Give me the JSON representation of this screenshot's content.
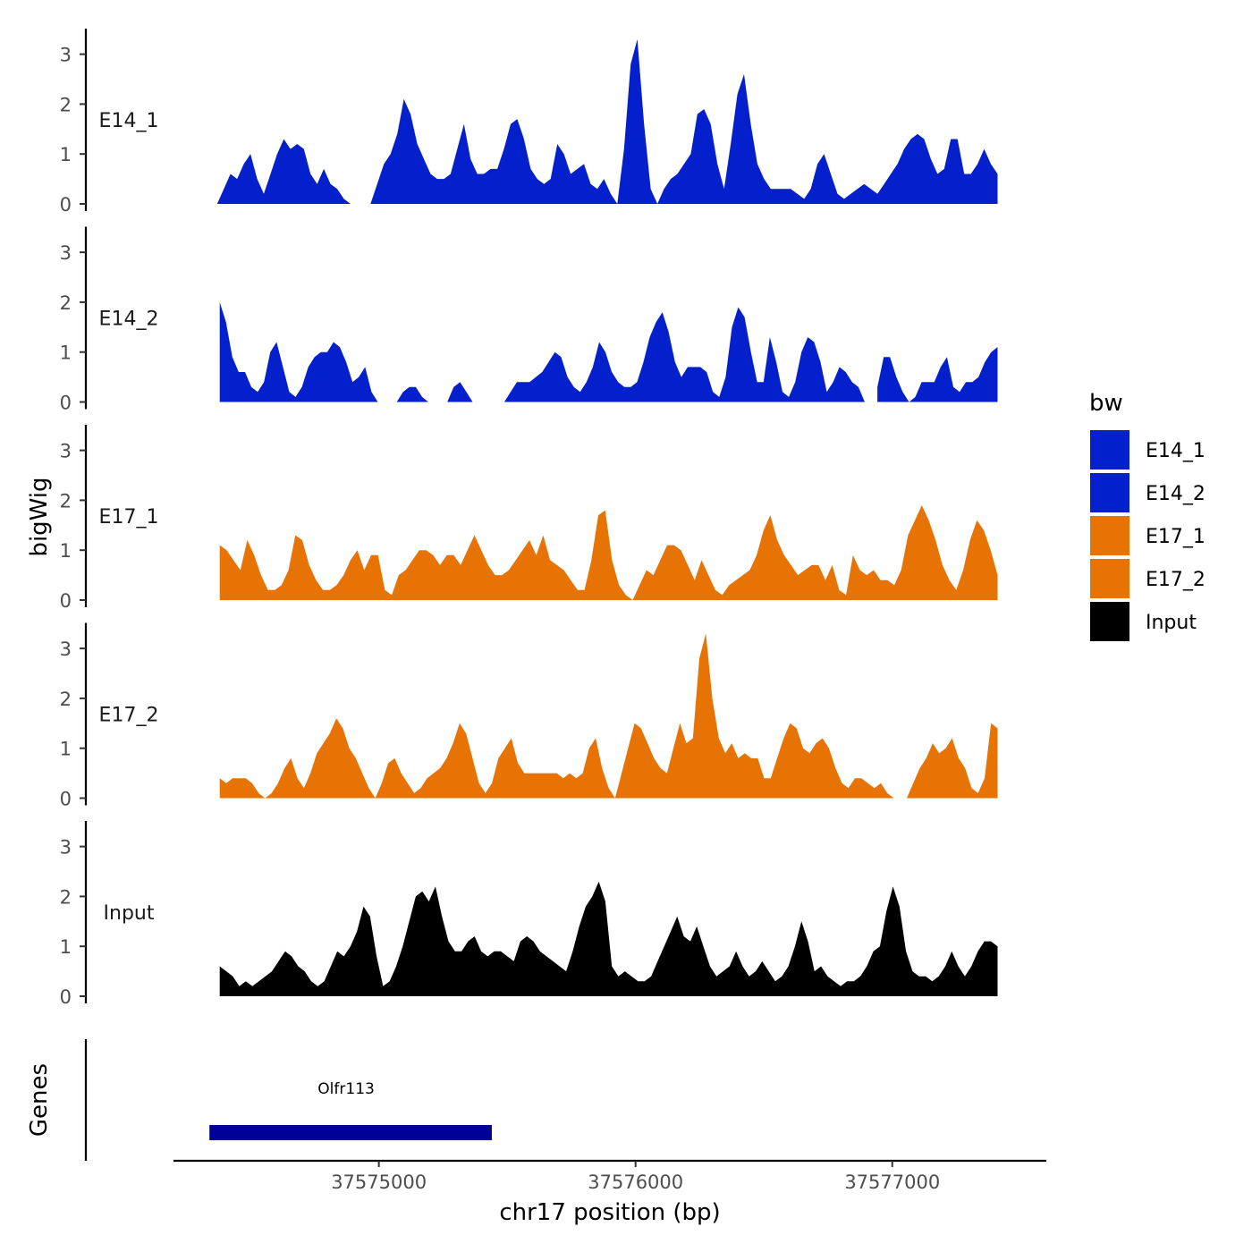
{
  "chart_data": {
    "type": "area",
    "title": "",
    "xlabel": "chr17 position (bp)",
    "ylabel": "bigWig",
    "genes_label": "Genes",
    "xlim": [
      37574200,
      37577600
    ],
    "ylim": [
      0,
      3.5
    ],
    "x_ticks": [
      37575000,
      37576000,
      37577000
    ],
    "x_tick_labels": [
      "37575000",
      "37576000",
      "37577000"
    ],
    "y_ticks": [
      0,
      1,
      2,
      3
    ],
    "y_tick_labels": [
      "0",
      "1",
      "2",
      "3"
    ],
    "legend": {
      "title": "bw",
      "position": "right",
      "entries": [
        {
          "label": "E14_1",
          "color": "#0320CC"
        },
        {
          "label": "E14_2",
          "color": "#0320CC"
        },
        {
          "label": "E17_1",
          "color": "#E87305"
        },
        {
          "label": "E17_2",
          "color": "#E87305"
        },
        {
          "label": "Input",
          "color": "#000000"
        }
      ]
    },
    "series": [
      {
        "name": "E14_1",
        "color": "#0320CC",
        "x_range": [
          37574370,
          37577410
        ],
        "values": [
          0,
          0.3,
          0.6,
          0.5,
          0.8,
          1.0,
          0.5,
          0.2,
          0.6,
          1.0,
          1.3,
          1.1,
          1.2,
          1.1,
          0.6,
          0.4,
          0.7,
          0.4,
          0.3,
          0.1,
          0,
          null,
          null,
          0,
          0.4,
          0.8,
          1.0,
          1.4,
          2.1,
          1.8,
          1.2,
          0.9,
          0.6,
          0.5,
          0.5,
          0.6,
          1.1,
          1.6,
          0.9,
          0.6,
          0.6,
          0.7,
          0.7,
          1.1,
          1.6,
          1.7,
          1.3,
          0.7,
          0.5,
          0.4,
          0.5,
          1.2,
          1.0,
          0.6,
          0.7,
          0.8,
          0.4,
          0.3,
          0.5,
          0.2,
          0,
          1.1,
          2.8,
          3.3,
          1.6,
          0.3,
          0,
          0.3,
          0.5,
          0.6,
          0.8,
          1.0,
          1.8,
          1.9,
          1.6,
          0.8,
          0.3,
          1.2,
          2.2,
          2.6,
          1.6,
          0.8,
          0.5,
          0.3,
          0.3,
          0.3,
          0.3,
          0.2,
          0.1,
          0.3,
          0.8,
          1.0,
          0.6,
          0.2,
          0.1,
          0.2,
          0.3,
          0.4,
          0.3,
          0.2,
          0.4,
          0.6,
          0.8,
          1.1,
          1.3,
          1.4,
          1.3,
          0.9,
          0.6,
          0.7,
          1.3,
          1.3,
          0.6,
          0.6,
          0.8,
          1.1,
          0.8,
          0.6
        ]
      },
      {
        "name": "E14_2",
        "color": "#0320CC",
        "x_range": [
          37574380,
          37577410
        ],
        "values": [
          2.0,
          1.6,
          0.9,
          0.6,
          0.6,
          0.3,
          0.2,
          0.4,
          1.0,
          1.2,
          0.7,
          0.2,
          0.1,
          0.3,
          0.7,
          0.9,
          1.0,
          1.0,
          1.2,
          1.1,
          0.8,
          0.4,
          0.5,
          0.7,
          0.2,
          0,
          null,
          null,
          0,
          0.2,
          0.3,
          0.3,
          0.1,
          0,
          null,
          null,
          0,
          0.3,
          0.4,
          0.2,
          0,
          null,
          null,
          null,
          null,
          0,
          0.2,
          0.4,
          0.4,
          0.4,
          0.5,
          0.6,
          0.8,
          1.0,
          0.9,
          0.5,
          0.3,
          0.2,
          0.4,
          0.7,
          1.2,
          1.0,
          0.6,
          0.4,
          0.3,
          0.3,
          0.4,
          0.8,
          1.3,
          1.6,
          1.8,
          1.4,
          0.8,
          0.5,
          0.7,
          0.7,
          0.7,
          0.6,
          0.2,
          0.1,
          0.5,
          1.5,
          1.9,
          1.7,
          1.0,
          0.4,
          0.4,
          1.3,
          0.8,
          0.2,
          0.1,
          0.4,
          1.0,
          1.3,
          1.2,
          0.8,
          0.2,
          0.4,
          0.7,
          0.6,
          0.4,
          0.3,
          0,
          null,
          0.3,
          0.9,
          0.9,
          0.5,
          0.2,
          0,
          0.1,
          0.4,
          0.4,
          0.4,
          0.7,
          0.9,
          0.3,
          0.2,
          0.4,
          0.4,
          0.5,
          0.8,
          1.0,
          1.1
        ]
      },
      {
        "name": "E17_1",
        "color": "#E87305",
        "x_range": [
          37574380,
          37577410
        ],
        "values": [
          1.1,
          1.0,
          0.8,
          0.6,
          1.2,
          0.9,
          0.5,
          0.2,
          0.2,
          0.3,
          0.6,
          1.3,
          1.2,
          0.7,
          0.4,
          0.2,
          0.2,
          0.3,
          0.5,
          0.8,
          1.0,
          0.6,
          0.9,
          0.9,
          0.2,
          0.1,
          0.5,
          0.6,
          0.8,
          1.0,
          1.0,
          0.9,
          0.7,
          0.9,
          0.9,
          0.7,
          1.0,
          1.3,
          1.0,
          0.7,
          0.5,
          0.5,
          0.6,
          0.8,
          1.0,
          1.2,
          0.9,
          1.3,
          0.8,
          0.7,
          0.6,
          0.4,
          0.2,
          0.2,
          0.8,
          1.7,
          1.8,
          0.8,
          0.3,
          0.1,
          0,
          0.3,
          0.6,
          0.5,
          0.8,
          1.1,
          1.1,
          1.0,
          0.7,
          0.4,
          0.8,
          0.5,
          0.2,
          0.1,
          0.3,
          0.4,
          0.5,
          0.6,
          0.9,
          1.4,
          1.7,
          1.2,
          0.9,
          0.7,
          0.5,
          0.6,
          0.7,
          0.7,
          0.4,
          0.7,
          0.2,
          0.1,
          0.9,
          0.6,
          0.5,
          0.6,
          0.4,
          0.4,
          0.3,
          0.6,
          1.3,
          1.6,
          1.9,
          1.6,
          1.2,
          0.7,
          0.4,
          0.2,
          0.6,
          1.2,
          1.6,
          1.4,
          1.0,
          0.5
        ]
      },
      {
        "name": "E17_2",
        "color": "#E87305",
        "x_range": [
          37574380,
          37577410
        ],
        "values": [
          0.4,
          0.3,
          0.4,
          0.4,
          0.4,
          0.3,
          0.1,
          0,
          0.1,
          0.3,
          0.6,
          0.8,
          0.4,
          0.2,
          0.5,
          0.9,
          1.1,
          1.3,
          1.6,
          1.4,
          1.0,
          0.8,
          0.5,
          0.2,
          0,
          0.3,
          0.7,
          0.8,
          0.5,
          0.3,
          0.1,
          0.2,
          0.4,
          0.5,
          0.6,
          0.8,
          1.1,
          1.5,
          1.3,
          0.8,
          0.3,
          0.1,
          0.3,
          0.8,
          1.0,
          1.2,
          0.7,
          0.5,
          0.5,
          0.5,
          0.5,
          0.5,
          0.5,
          0.4,
          0.5,
          0.4,
          0.5,
          1.0,
          1.2,
          0.6,
          0.2,
          0,
          0.5,
          1.0,
          1.5,
          1.4,
          1.1,
          0.8,
          0.6,
          0.5,
          1.0,
          1.5,
          1.1,
          1.2,
          2.8,
          3.3,
          2.0,
          1.2,
          0.9,
          1.1,
          0.8,
          0.9,
          0.8,
          0.8,
          0.4,
          0.4,
          0.8,
          1.2,
          1.5,
          1.4,
          1.0,
          0.9,
          1.1,
          1.2,
          1.0,
          0.6,
          0.3,
          0.2,
          0.4,
          0.4,
          0.3,
          0.2,
          0.3,
          0.1,
          0,
          null,
          0,
          0.3,
          0.6,
          0.8,
          1.1,
          0.9,
          1.0,
          1.2,
          0.8,
          0.6,
          0.2,
          0.1,
          0.4,
          1.5,
          1.4
        ]
      },
      {
        "name": "Input",
        "color": "#000000",
        "x_range": [
          37574380,
          37577410
        ],
        "values": [
          0.6,
          0.5,
          0.4,
          0.2,
          0.3,
          0.2,
          0.3,
          0.4,
          0.5,
          0.7,
          0.9,
          0.8,
          0.6,
          0.5,
          0.3,
          0.2,
          0.3,
          0.6,
          0.9,
          0.8,
          1.0,
          1.3,
          1.8,
          1.6,
          0.8,
          0.2,
          0.3,
          0.6,
          1.0,
          1.5,
          2.0,
          2.1,
          1.9,
          2.2,
          1.6,
          1.1,
          0.9,
          0.9,
          1.1,
          1.2,
          0.9,
          0.8,
          0.9,
          0.9,
          0.8,
          0.7,
          1.1,
          1.2,
          1.1,
          0.9,
          0.8,
          0.7,
          0.6,
          0.5,
          0.9,
          1.4,
          1.8,
          2.0,
          2.3,
          1.9,
          0.6,
          0.4,
          0.5,
          0.4,
          0.3,
          0.3,
          0.4,
          0.7,
          1.0,
          1.3,
          1.6,
          1.2,
          1.1,
          1.4,
          1.0,
          0.6,
          0.4,
          0.5,
          0.6,
          0.9,
          0.6,
          0.4,
          0.5,
          0.7,
          0.5,
          0.3,
          0.4,
          0.6,
          1.0,
          1.5,
          1.1,
          0.5,
          0.6,
          0.4,
          0.3,
          0.2,
          0.3,
          0.3,
          0.4,
          0.6,
          0.9,
          1.0,
          1.7,
          2.2,
          1.8,
          0.9,
          0.5,
          0.4,
          0.4,
          0.3,
          0.4,
          0.6,
          0.9,
          0.6,
          0.4,
          0.6,
          0.9,
          1.1,
          1.1,
          1.0
        ]
      }
    ],
    "genes": [
      {
        "name": "Olfr113",
        "start": 37574340,
        "end": 37575440,
        "color": "#000099"
      }
    ]
  }
}
